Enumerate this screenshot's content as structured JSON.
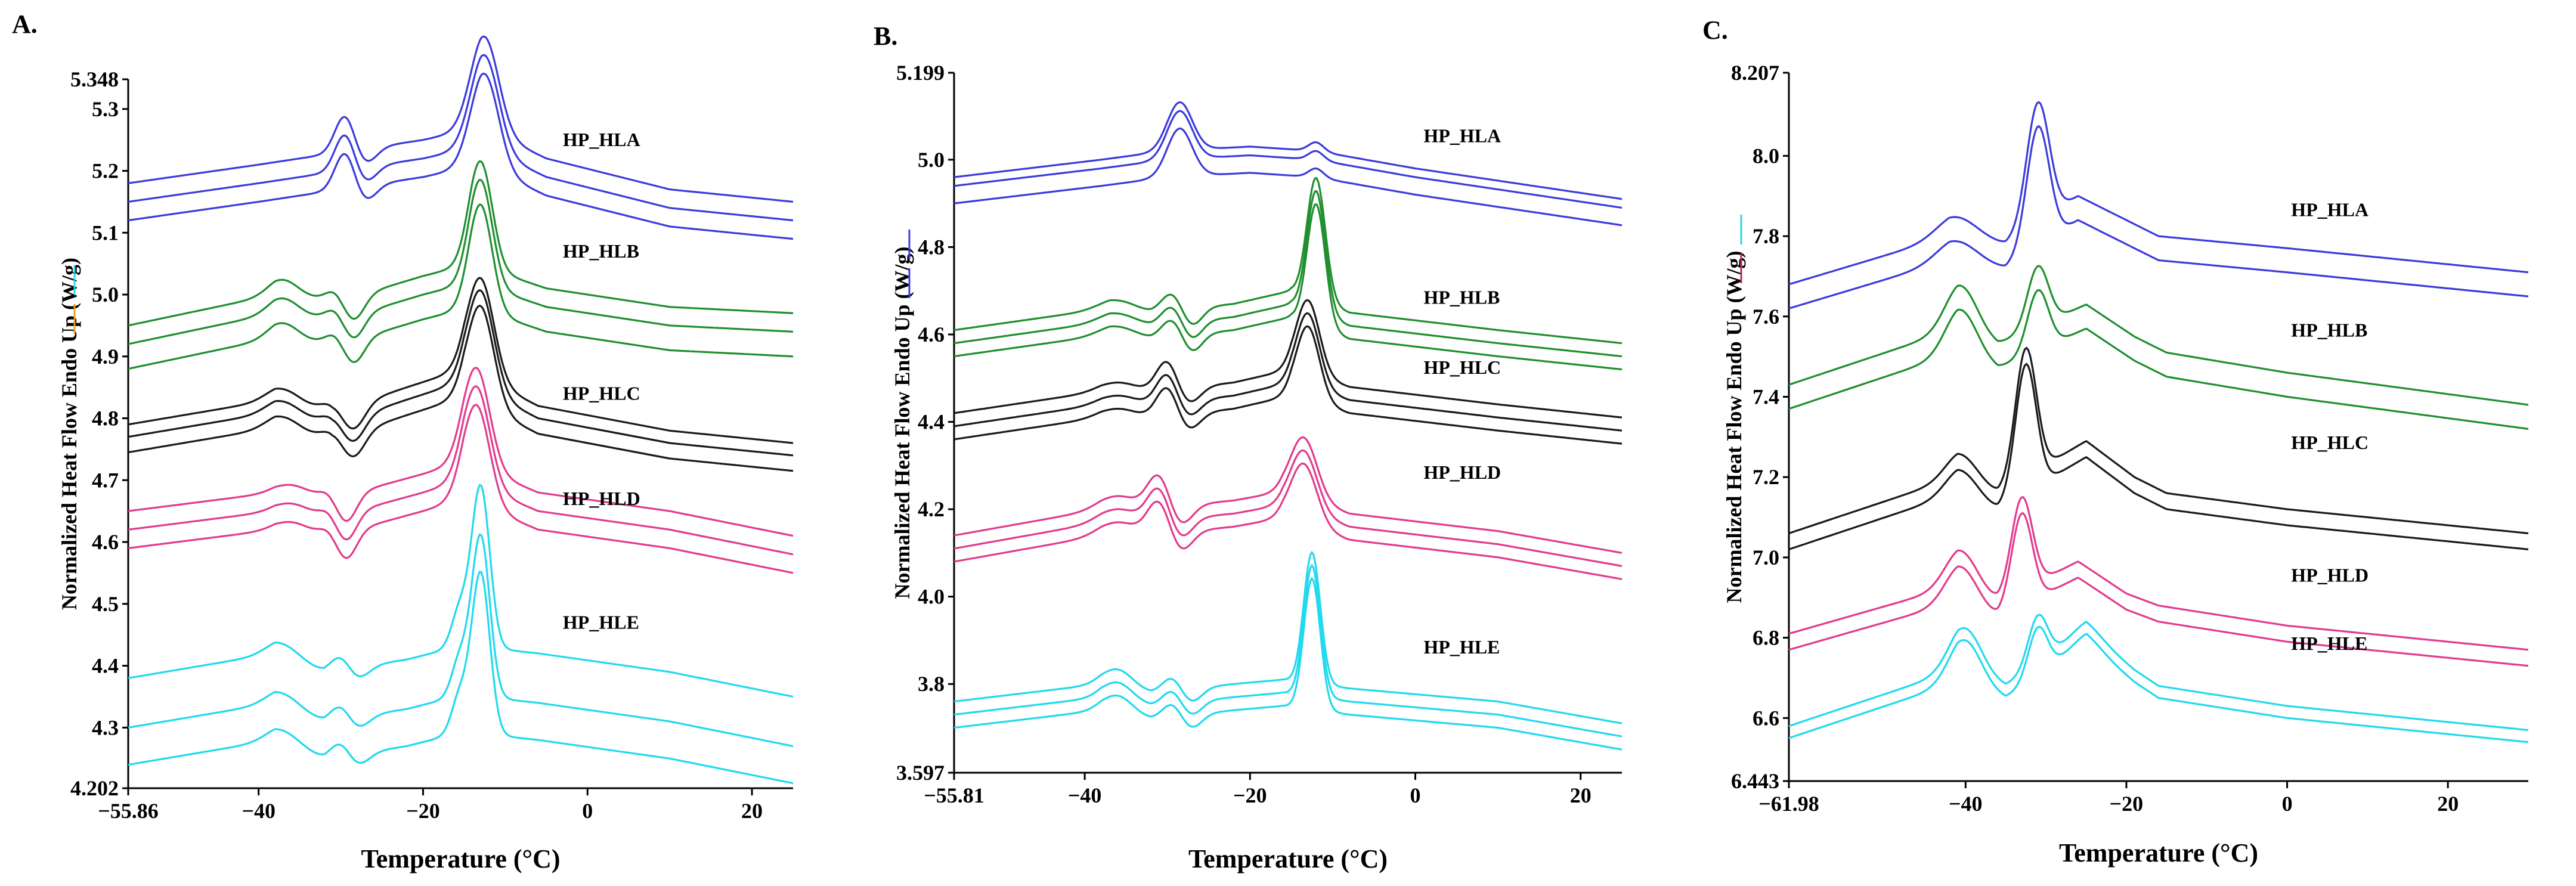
{
  "chart_data": [
    {
      "type": "line",
      "panel": "A.",
      "xlabel": "Temperature (°C)",
      "ylabel": "Normalized Heat Flow Endo Up (W/g)",
      "xlim": [
        -55.86,
        25
      ],
      "ylim": [
        4.202,
        5.348
      ],
      "x_ticks": [
        "−55.86",
        "−40",
        "−20",
        "0",
        "20"
      ],
      "y_ticks": [
        "4.202",
        "4.3",
        "4.4",
        "4.5",
        "4.6",
        "4.7",
        "4.8",
        "4.9",
        "5.0",
        "5.1",
        "5.2",
        "5.3",
        "5.348"
      ],
      "x_tick_values": [
        -55.86,
        -40,
        -20,
        0,
        20
      ],
      "y_tick_values": [
        4.202,
        4.3,
        4.4,
        4.5,
        4.6,
        4.7,
        4.8,
        4.9,
        5.0,
        5.1,
        5.2,
        5.3,
        5.348
      ],
      "label_x": -3,
      "series": [
        {
          "name": "HP_HLA",
          "color": "#3b3bdc",
          "label_y": 5.24,
          "offsets": [
            5.18,
            5.15,
            5.12
          ],
          "baseline": [
            [
              -55.86,
              0
            ],
            [
              -40,
              0.03
            ],
            [
              -30,
              0.05
            ],
            [
              -20,
              0.07
            ],
            [
              -13,
              0.09
            ],
            [
              -5,
              0.04
            ],
            [
              10,
              -0.01
            ],
            [
              25,
              -0.03
            ]
          ],
          "peaks": [
            [
              -29.5,
              0.06,
              1.2
            ],
            [
              -27,
              -0.025,
              1.3
            ],
            [
              -12.5,
              0.15,
              1.7
            ]
          ]
        },
        {
          "name": "HP_HLB",
          "color": "#1f8f2f",
          "label_y": 5.06,
          "offsets": [
            4.95,
            4.92,
            4.88
          ],
          "baseline": [
            [
              -55.86,
              0
            ],
            [
              -38,
              0.05
            ],
            [
              -30,
              0.04
            ],
            [
              -20,
              0.08
            ],
            [
              -14,
              0.1
            ],
            [
              -5,
              0.06
            ],
            [
              10,
              0.03
            ],
            [
              25,
              0.02
            ]
          ],
          "peaks": [
            [
              -37,
              0.025,
              1.8
            ],
            [
              -30.5,
              0.02,
              1.2
            ],
            [
              -28.5,
              -0.04,
              1.3
            ],
            [
              -13,
              0.17,
              1.4
            ]
          ]
        },
        {
          "name": "HP_HLC",
          "color": "#1a1a1a",
          "label_y": 4.83,
          "offsets": [
            4.79,
            4.77,
            4.745
          ],
          "baseline": [
            [
              -55.86,
              0
            ],
            [
              -38,
              0.04
            ],
            [
              -31,
              0.02
            ],
            [
              -22,
              0.06
            ],
            [
              -15,
              0.09
            ],
            [
              -6,
              0.03
            ],
            [
              10,
              -0.01
            ],
            [
              25,
              -0.03
            ]
          ],
          "peaks": [
            [
              -37,
              0.02,
              2.0
            ],
            [
              -31,
              0.015,
              1.3
            ],
            [
              -28.5,
              -0.04,
              1.4
            ],
            [
              -13,
              0.16,
              1.6
            ]
          ]
        },
        {
          "name": "HP_HLD",
          "color": "#e23b8e",
          "label_y": 4.66,
          "offsets": [
            4.65,
            4.62,
            4.59
          ],
          "baseline": [
            [
              -55.86,
              0
            ],
            [
              -38,
              0.03
            ],
            [
              -31,
              0.02
            ],
            [
              -20,
              0.06
            ],
            [
              -15,
              0.08
            ],
            [
              -6,
              0.03
            ],
            [
              10,
              0
            ],
            [
              25,
              -0.04
            ]
          ],
          "peaks": [
            [
              -36,
              0.015,
              2.0
            ],
            [
              -31,
              0.02,
              1.2
            ],
            [
              -29.5,
              -0.05,
              1.3
            ],
            [
              -13.5,
              0.16,
              1.6
            ]
          ]
        },
        {
          "name": "HP_HLE",
          "color": "#22d9ee",
          "label_y": 4.46,
          "offsets": [
            4.38,
            4.3,
            4.24
          ],
          "baseline": [
            [
              -55.86,
              0
            ],
            [
              -38,
              0.04
            ],
            [
              -32,
              0.01
            ],
            [
              -22,
              0.03
            ],
            [
              -16,
              0.05
            ],
            [
              -13,
              0.05
            ],
            [
              -6,
              0.04
            ],
            [
              10,
              0.01
            ],
            [
              25,
              -0.03
            ]
          ],
          "peaks": [
            [
              -37,
              0.02,
              2.0
            ],
            [
              -30,
              0.025,
              1.2
            ],
            [
              -28,
              -0.02,
              1.4
            ],
            [
              -15.5,
              0.06,
              1.0
            ],
            [
              -13,
              0.26,
              1.1
            ]
          ]
        }
      ]
    },
    {
      "type": "line",
      "panel": "B.",
      "xlabel": "Temperature (°C)",
      "ylabel": "Normalized Heat Flow Endo Up (W/g)",
      "xlim": [
        -55.81,
        25
      ],
      "ylim": [
        3.597,
        5.199
      ],
      "x_ticks": [
        "−55.81",
        "−40",
        "−20",
        "0",
        "20"
      ],
      "y_ticks": [
        "3.597",
        "3.8",
        "4.0",
        "4.2",
        "4.4",
        "4.6",
        "4.8",
        "5.0",
        "5.199"
      ],
      "x_tick_values": [
        -55.81,
        -40,
        -20,
        0,
        20
      ],
      "y_tick_values": [
        3.597,
        3.8,
        4.0,
        4.2,
        4.4,
        4.6,
        4.8,
        5.0,
        5.199
      ],
      "label_x": 1,
      "series": [
        {
          "name": "HP_HLA",
          "color": "#3b3bdc",
          "label_y": 5.04,
          "offsets": [
            4.96,
            4.94,
            4.9
          ],
          "baseline": [
            [
              -55.81,
              0
            ],
            [
              -38,
              0.04
            ],
            [
              -30,
              0.06
            ],
            [
              -20,
              0.07
            ],
            [
              -12,
              0.06
            ],
            [
              0,
              0.02
            ],
            [
              25,
              -0.05
            ]
          ],
          "peaks": [
            [
              -28.5,
              0.11,
              1.5
            ],
            [
              -12,
              0.02,
              0.9
            ]
          ]
        },
        {
          "name": "HP_HLB",
          "color": "#1f8f2f",
          "label_y": 4.67,
          "offsets": [
            4.61,
            4.58,
            4.55
          ],
          "baseline": [
            [
              -55.81,
              0
            ],
            [
              -37,
              0.05
            ],
            [
              -32,
              0.04
            ],
            [
              -22,
              0.06
            ],
            [
              -15,
              0.09
            ],
            [
              -8,
              0.04
            ],
            [
              10,
              0
            ],
            [
              25,
              -0.03
            ]
          ],
          "peaks": [
            [
              -36,
              0.02,
              2.2
            ],
            [
              -29.5,
              0.04,
              1.2
            ],
            [
              -27,
              -0.04,
              1.2
            ],
            [
              -12,
              0.28,
              1.1
            ]
          ]
        },
        {
          "name": "HP_HLC",
          "color": "#1a1a1a",
          "label_y": 4.51,
          "offsets": [
            4.42,
            4.39,
            4.36
          ],
          "baseline": [
            [
              -55.81,
              0
            ],
            [
              -38,
              0.05
            ],
            [
              -32,
              0.05
            ],
            [
              -22,
              0.07
            ],
            [
              -15,
              0.1
            ],
            [
              -8,
              0.06
            ],
            [
              10,
              0.02
            ],
            [
              25,
              -0.01
            ]
          ],
          "peaks": [
            [
              -36,
              0.02,
              2.2
            ],
            [
              -30,
              0.07,
              1.3
            ],
            [
              -27.5,
              -0.04,
              1.4
            ],
            [
              -13,
              0.17,
              1.4
            ]
          ]
        },
        {
          "name": "HP_HLD",
          "color": "#e23b8e",
          "label_y": 4.27,
          "offsets": [
            4.14,
            4.11,
            4.08
          ],
          "baseline": [
            [
              -55.81,
              0
            ],
            [
              -38,
              0.06
            ],
            [
              -33,
              0.06
            ],
            [
              -22,
              0.08
            ],
            [
              -16,
              0.1
            ],
            [
              -8,
              0.05
            ],
            [
              10,
              0.01
            ],
            [
              25,
              -0.04
            ]
          ],
          "peaks": [
            [
              -36,
              0.03,
              2.2
            ],
            [
              -31,
              0.08,
              1.4
            ],
            [
              -28.5,
              -0.05,
              1.4
            ],
            [
              -13.5,
              0.14,
              1.6
            ]
          ]
        },
        {
          "name": "HP_HLE",
          "color": "#22d9ee",
          "label_y": 3.87,
          "offsets": [
            3.76,
            3.73,
            3.7
          ],
          "baseline": [
            [
              -55.81,
              0
            ],
            [
              -38,
              0.04
            ],
            [
              -32,
              0.02
            ],
            [
              -22,
              0.04
            ],
            [
              -16,
              0.05
            ],
            [
              -8,
              0.03
            ],
            [
              10,
              0
            ],
            [
              25,
              -0.05
            ]
          ],
          "peaks": [
            [
              -36,
              0.04,
              1.8
            ],
            [
              -29.5,
              0.03,
              1.1
            ],
            [
              -27,
              -0.03,
              1.2
            ],
            [
              -12.5,
              0.3,
              1.0
            ]
          ]
        }
      ]
    },
    {
      "type": "line",
      "panel": "C.",
      "xlabel": "Temperature (°C)",
      "ylabel": "Normalized Heat Flow Endo Up (W/g)",
      "xlim": [
        -61.98,
        30
      ],
      "ylim": [
        6.443,
        8.207
      ],
      "x_ticks": [
        "−61.98",
        "−40",
        "−20",
        "0",
        "20"
      ],
      "y_ticks": [
        "6.443",
        "6.6",
        "6.8",
        "7.0",
        "7.2",
        "7.4",
        "7.6",
        "7.8",
        "8.0",
        "8.207"
      ],
      "x_tick_values": [
        -61.98,
        -40,
        -20,
        0,
        20
      ],
      "y_tick_values": [
        6.443,
        6.6,
        6.8,
        7.0,
        7.2,
        7.4,
        7.6,
        7.8,
        8.0,
        8.207
      ],
      "label_x": 0.5,
      "series": [
        {
          "name": "HP_HLA",
          "color": "#3b3bdc",
          "label_y": 7.85,
          "offsets": [
            7.68,
            7.62
          ],
          "baseline": [
            [
              -61.98,
              0
            ],
            [
              -42,
              0.12
            ],
            [
              -35,
              0.1
            ],
            [
              -26,
              0.22
            ],
            [
              -20,
              0.16
            ],
            [
              -16,
              0.12
            ],
            [
              0,
              0.09
            ],
            [
              30,
              0.03
            ]
          ],
          "peaks": [
            [
              -41,
              0.05,
              2.5
            ],
            [
              -31,
              0.3,
              1.4
            ]
          ]
        },
        {
          "name": "HP_HLB",
          "color": "#1f8f2f",
          "label_y": 7.55,
          "offsets": [
            7.43,
            7.37
          ],
          "baseline": [
            [
              -61.98,
              0
            ],
            [
              -41,
              0.14
            ],
            [
              -36,
              0.1
            ],
            [
              -25,
              0.2
            ],
            [
              -19,
              0.12
            ],
            [
              -15,
              0.08
            ],
            [
              0,
              0.03
            ],
            [
              30,
              -0.05
            ]
          ],
          "peaks": [
            [
              -40.5,
              0.11,
              2.0
            ],
            [
              -31,
              0.15,
              1.3
            ]
          ]
        },
        {
          "name": "HP_HLC",
          "color": "#1a1a1a",
          "label_y": 7.27,
          "offsets": [
            7.06,
            7.02
          ],
          "baseline": [
            [
              -61.98,
              0
            ],
            [
              -41,
              0.14
            ],
            [
              -36,
              0.1
            ],
            [
              -25,
              0.23
            ],
            [
              -19,
              0.14
            ],
            [
              -15,
              0.1
            ],
            [
              0,
              0.06
            ],
            [
              30,
              0
            ]
          ],
          "peaks": [
            [
              -40.5,
              0.06,
              2.0
            ],
            [
              -32.5,
              0.32,
              1.3
            ]
          ]
        },
        {
          "name": "HP_HLD",
          "color": "#e23b8e",
          "label_y": 6.94,
          "offsets": [
            6.81,
            6.77
          ],
          "baseline": [
            [
              -61.98,
              0
            ],
            [
              -41,
              0.12
            ],
            [
              -36,
              0.08
            ],
            [
              -26,
              0.18
            ],
            [
              -20,
              0.1
            ],
            [
              -16,
              0.07
            ],
            [
              0,
              0.02
            ],
            [
              30,
              -0.04
            ]
          ],
          "peaks": [
            [
              -40.5,
              0.09,
              2.0
            ],
            [
              -33,
              0.23,
              1.3
            ]
          ]
        },
        {
          "name": "HP_HLE",
          "color": "#22d9ee",
          "label_y": 6.77,
          "offsets": [
            6.58,
            6.55
          ],
          "baseline": [
            [
              -61.98,
              0
            ],
            [
              -41,
              0.14
            ],
            [
              -35,
              0.1
            ],
            [
              -25,
              0.24
            ],
            [
              -19,
              0.14
            ],
            [
              -16,
              0.1
            ],
            [
              0,
              0.05
            ],
            [
              30,
              -0.01
            ]
          ],
          "peaks": [
            [
              -40,
              0.11,
              2.0
            ],
            [
              -31,
              0.12,
              1.2
            ],
            [
              -25,
              0.02,
              2.0
            ]
          ]
        }
      ]
    }
  ]
}
